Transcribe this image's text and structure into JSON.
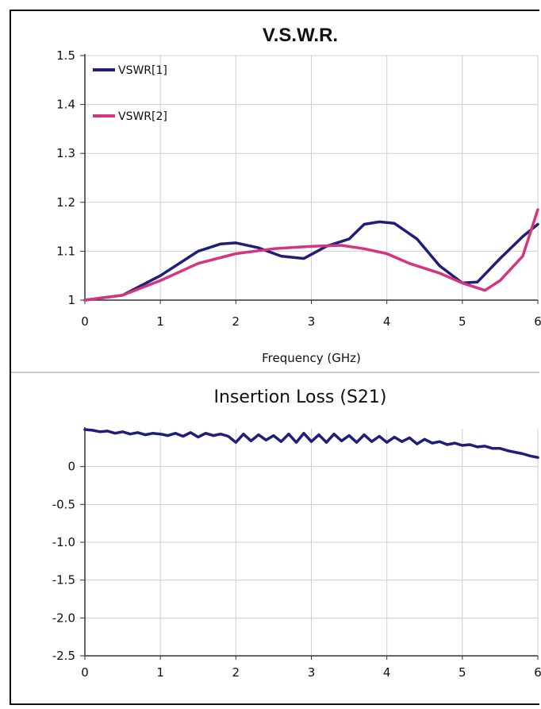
{
  "chart_data": [
    {
      "type": "line",
      "title": "V.S.W.R.",
      "xlabel": "Frequency (GHz)",
      "ylabel": "",
      "xlim": [
        0,
        6
      ],
      "ylim": [
        1,
        1.5
      ],
      "grid": true,
      "legend_position": "top-left",
      "x_ticks": [
        "0",
        "1",
        "2",
        "3",
        "4",
        "5",
        "6"
      ],
      "y_ticks": [
        "1",
        "1.1",
        "1.2",
        "1.3",
        "1.4",
        "1.5"
      ],
      "series": [
        {
          "name": "VSWR[1]",
          "color": "#1f1f7a",
          "x": [
            0,
            0.5,
            1.0,
            1.5,
            1.8,
            2.0,
            2.3,
            2.6,
            2.9,
            3.2,
            3.5,
            3.7,
            3.9,
            4.1,
            4.4,
            4.7,
            5.0,
            5.2,
            5.5,
            5.8,
            6.0
          ],
          "y": [
            1.0,
            1.01,
            1.05,
            1.1,
            1.115,
            1.117,
            1.107,
            1.09,
            1.085,
            1.11,
            1.125,
            1.155,
            1.16,
            1.157,
            1.125,
            1.07,
            1.035,
            1.037,
            1.085,
            1.13,
            1.155
          ]
        },
        {
          "name": "VSWR[2]",
          "color": "#d4357e",
          "x": [
            0,
            0.5,
            1.0,
            1.5,
            2.0,
            2.5,
            3.0,
            3.4,
            3.7,
            4.0,
            4.3,
            4.7,
            5.0,
            5.3,
            5.5,
            5.8,
            6.0
          ],
          "y": [
            1.0,
            1.01,
            1.04,
            1.075,
            1.095,
            1.105,
            1.11,
            1.112,
            1.105,
            1.095,
            1.075,
            1.055,
            1.035,
            1.02,
            1.04,
            1.09,
            1.185
          ]
        }
      ]
    },
    {
      "type": "line",
      "title": "Insertion Loss (S21)",
      "xlabel": "",
      "ylabel": "",
      "xlim": [
        0,
        6
      ],
      "ylim": [
        -2.5,
        0.5
      ],
      "grid": true,
      "x_ticks": [
        "0",
        "1",
        "2",
        "3",
        "4",
        "5",
        "6"
      ],
      "y_ticks": [
        "0",
        "-0.5",
        "-1.0",
        "-1.5",
        "-2.0",
        "-2.5"
      ],
      "series": [
        {
          "name": "",
          "color": "#1f1f7a",
          "x": [
            0,
            0.1,
            0.2,
            0.3,
            0.4,
            0.5,
            0.6,
            0.7,
            0.8,
            0.9,
            1.0,
            1.1,
            1.2,
            1.3,
            1.4,
            1.5,
            1.6,
            1.7,
            1.8,
            1.9,
            2.0,
            2.1,
            2.2,
            2.3,
            2.4,
            2.5,
            2.6,
            2.7,
            2.8,
            2.9,
            3.0,
            3.1,
            3.2,
            3.3,
            3.4,
            3.5,
            3.6,
            3.7,
            3.8,
            3.9,
            4.0,
            4.1,
            4.2,
            4.3,
            4.4,
            4.5,
            4.6,
            4.7,
            4.8,
            4.9,
            5.0,
            5.1,
            5.2,
            5.3,
            5.4,
            5.5,
            5.6,
            5.7,
            5.8,
            5.9,
            6.0
          ],
          "y": [
            0.49,
            0.48,
            0.46,
            0.47,
            0.44,
            0.46,
            0.43,
            0.45,
            0.42,
            0.44,
            0.43,
            0.41,
            0.44,
            0.4,
            0.45,
            0.39,
            0.44,
            0.41,
            0.43,
            0.4,
            0.32,
            0.43,
            0.34,
            0.42,
            0.35,
            0.41,
            0.33,
            0.43,
            0.32,
            0.44,
            0.33,
            0.42,
            0.32,
            0.43,
            0.34,
            0.41,
            0.32,
            0.42,
            0.33,
            0.4,
            0.32,
            0.39,
            0.33,
            0.38,
            0.3,
            0.36,
            0.31,
            0.33,
            0.29,
            0.31,
            0.28,
            0.29,
            0.26,
            0.27,
            0.24,
            0.24,
            0.21,
            0.19,
            0.17,
            0.14,
            0.12
          ]
        }
      ]
    }
  ]
}
